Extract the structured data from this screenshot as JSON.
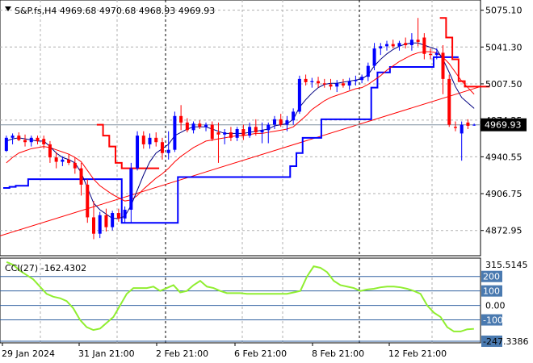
{
  "symbol_header": "S&P.fs,H4  4969.68 4970.68 4968.93 4969.93",
  "indicator_header": "CCI(27) -162.4302",
  "current_price_label": "4969.93",
  "colors": {
    "bull": "#0000ff",
    "bear": "#ff0000",
    "ma_fast": "#000080",
    "ma_slow": "#ff0000",
    "stop_line": "#0000ff",
    "trend_line": "#ff0000",
    "cci_line": "#90ee30",
    "cci_level": "#3060a0",
    "level_tag_bg": "#4a7ab0"
  },
  "chart_data": [
    {
      "type": "candlestick",
      "y_axis_ticks": [
        "5075.10",
        "5041.30",
        "5007.50",
        "4974.25",
        "4940.55",
        "4906.75",
        "4872.95"
      ],
      "ylim": [
        4853.5,
        5080.0
      ],
      "x_axis_labels": [
        "29 Jan 2024",
        "31 Jan 21:00",
        "2 Feb 21:00",
        "6 Feb 21:00",
        "8 Feb 21:00",
        "12 Feb 21:00"
      ],
      "current_price": 4969.93,
      "candles": [
        {
          "o": 4946,
          "h": 4960,
          "l": 4945,
          "c": 4958
        },
        {
          "o": 4958,
          "h": 4962,
          "l": 4952,
          "c": 4960
        },
        {
          "o": 4960,
          "h": 4963,
          "l": 4955,
          "c": 4956
        },
        {
          "o": 4956,
          "h": 4961,
          "l": 4950,
          "c": 4954
        },
        {
          "o": 4954,
          "h": 4960,
          "l": 4950,
          "c": 4958
        },
        {
          "o": 4958,
          "h": 4960,
          "l": 4952,
          "c": 4955
        },
        {
          "o": 4957,
          "h": 4960,
          "l": 4948,
          "c": 4952
        },
        {
          "o": 4952,
          "h": 4955,
          "l": 4935,
          "c": 4940
        },
        {
          "o": 4940,
          "h": 4945,
          "l": 4930,
          "c": 4936
        },
        {
          "o": 4936,
          "h": 4941,
          "l": 4932,
          "c": 4938
        },
        {
          "o": 4938,
          "h": 4943,
          "l": 4933,
          "c": 4935
        },
        {
          "o": 4935,
          "h": 4940,
          "l": 4925,
          "c": 4930
        },
        {
          "o": 4930,
          "h": 4935,
          "l": 4905,
          "c": 4915
        },
        {
          "o": 4915,
          "h": 4920,
          "l": 4880,
          "c": 4885
        },
        {
          "o": 4885,
          "h": 4900,
          "l": 4865,
          "c": 4870
        },
        {
          "o": 4870,
          "h": 4890,
          "l": 4866,
          "c": 4887
        },
        {
          "o": 4887,
          "h": 4893,
          "l": 4872,
          "c": 4876
        },
        {
          "o": 4876,
          "h": 4891,
          "l": 4873,
          "c": 4889
        },
        {
          "o": 4889,
          "h": 4893,
          "l": 4881,
          "c": 4884
        },
        {
          "o": 4884,
          "h": 4895,
          "l": 4880,
          "c": 4892
        },
        {
          "o": 4892,
          "h": 4935,
          "l": 4880,
          "c": 4930
        },
        {
          "o": 4930,
          "h": 4964,
          "l": 4928,
          "c": 4960
        },
        {
          "o": 4960,
          "h": 4964,
          "l": 4948,
          "c": 4952
        },
        {
          "o": 4952,
          "h": 4962,
          "l": 4948,
          "c": 4958
        },
        {
          "o": 4958,
          "h": 4963,
          "l": 4950,
          "c": 4954
        },
        {
          "o": 4954,
          "h": 4958,
          "l": 4938,
          "c": 4944
        },
        {
          "o": 4944,
          "h": 4964,
          "l": 4938,
          "c": 4947
        },
        {
          "o": 4947,
          "h": 4982,
          "l": 4945,
          "c": 4978
        },
        {
          "o": 4978,
          "h": 4988,
          "l": 4965,
          "c": 4972
        },
        {
          "o": 4972,
          "h": 4976,
          "l": 4963,
          "c": 4965
        },
        {
          "o": 4965,
          "h": 4973,
          "l": 4962,
          "c": 4971
        },
        {
          "o": 4971,
          "h": 4974,
          "l": 4966,
          "c": 4968
        },
        {
          "o": 4968,
          "h": 4972,
          "l": 4964,
          "c": 4970
        },
        {
          "o": 4970,
          "h": 4973,
          "l": 4955,
          "c": 4957
        },
        {
          "o": 4963,
          "h": 4972,
          "l": 4935,
          "c": 4961
        },
        {
          "o": 4961,
          "h": 4966,
          "l": 4952,
          "c": 4963
        },
        {
          "o": 4963,
          "h": 4968,
          "l": 4955,
          "c": 4958
        },
        {
          "o": 4958,
          "h": 4968,
          "l": 4955,
          "c": 4966
        },
        {
          "o": 4966,
          "h": 4970,
          "l": 4956,
          "c": 4960
        },
        {
          "o": 4960,
          "h": 4972,
          "l": 4958,
          "c": 4968
        },
        {
          "o": 4968,
          "h": 4975,
          "l": 4960,
          "c": 4963
        },
        {
          "o": 4963,
          "h": 4972,
          "l": 4953,
          "c": 4965
        },
        {
          "o": 4965,
          "h": 4972,
          "l": 4953,
          "c": 4970
        },
        {
          "o": 4970,
          "h": 4978,
          "l": 4966,
          "c": 4975
        },
        {
          "o": 4975,
          "h": 4980,
          "l": 4968,
          "c": 4970
        },
        {
          "o": 4970,
          "h": 4978,
          "l": 4964,
          "c": 4974
        },
        {
          "o": 4974,
          "h": 4985,
          "l": 4970,
          "c": 4982
        },
        {
          "o": 4982,
          "h": 5015,
          "l": 4980,
          "c": 5012
        },
        {
          "o": 5012,
          "h": 5016,
          "l": 5006,
          "c": 5009
        },
        {
          "o": 5009,
          "h": 5013,
          "l": 5004,
          "c": 5010
        },
        {
          "o": 5010,
          "h": 5014,
          "l": 5004,
          "c": 5008
        },
        {
          "o": 5008,
          "h": 5012,
          "l": 5004,
          "c": 5007
        },
        {
          "o": 5007,
          "h": 5012,
          "l": 5002,
          "c": 5005
        },
        {
          "o": 5005,
          "h": 5011,
          "l": 5000,
          "c": 5008
        },
        {
          "o": 5008,
          "h": 5012,
          "l": 5004,
          "c": 5006
        },
        {
          "o": 5006,
          "h": 5013,
          "l": 5002,
          "c": 5010
        },
        {
          "o": 5010,
          "h": 5015,
          "l": 5006,
          "c": 5011
        },
        {
          "o": 5011,
          "h": 5016,
          "l": 5008,
          "c": 5014
        },
        {
          "o": 5014,
          "h": 5027,
          "l": 5010,
          "c": 5024
        },
        {
          "o": 5024,
          "h": 5045,
          "l": 5020,
          "c": 5040
        },
        {
          "o": 5040,
          "h": 5045,
          "l": 5034,
          "c": 5042
        },
        {
          "o": 5042,
          "h": 5047,
          "l": 5038,
          "c": 5044
        },
        {
          "o": 5044,
          "h": 5048,
          "l": 5040,
          "c": 5042
        },
        {
          "o": 5042,
          "h": 5047,
          "l": 5038,
          "c": 5045
        },
        {
          "o": 5045,
          "h": 5050,
          "l": 5040,
          "c": 5043
        },
        {
          "o": 5043,
          "h": 5054,
          "l": 5038,
          "c": 5048
        },
        {
          "o": 5048,
          "h": 5068,
          "l": 5042,
          "c": 5046
        },
        {
          "o": 5050,
          "h": 5054,
          "l": 5030,
          "c": 5035
        },
        {
          "o": 5035,
          "h": 5040,
          "l": 5030,
          "c": 5034
        },
        {
          "o": 5034,
          "h": 5040,
          "l": 5030,
          "c": 5036
        },
        {
          "o": 5036,
          "h": 5043,
          "l": 4998,
          "c": 5012
        },
        {
          "o": 5012,
          "h": 5016,
          "l": 4968,
          "c": 4970
        },
        {
          "o": 4968,
          "h": 4973,
          "l": 4964,
          "c": 4967
        },
        {
          "o": 4962,
          "h": 4973,
          "l": 4937,
          "c": 4970
        },
        {
          "o": 4972,
          "h": 4975,
          "l": 4966,
          "c": 4969
        },
        {
          "o": 4970,
          "h": 4971,
          "l": 4969,
          "c": 4970
        }
      ],
      "ma_fast": [
        4955,
        4957,
        4958,
        4957,
        4956,
        4955,
        4955,
        4950,
        4944,
        4940,
        4938,
        4935,
        4926,
        4912,
        4898,
        4892,
        4888,
        4884,
        4884,
        4886,
        4896,
        4910,
        4924,
        4936,
        4944,
        4948,
        4952,
        4960,
        4963,
        4966,
        4968,
        4968,
        4968,
        4966,
        4964,
        4962,
        4962,
        4962,
        4962,
        4963,
        4964,
        4965,
        4966,
        4969,
        4970,
        4971,
        4975,
        4986,
        4993,
        4999,
        5004,
        5007,
        5008,
        5008,
        5009,
        5010,
        5011,
        5012,
        5016,
        5024,
        5030,
        5035,
        5039,
        5042,
        5044,
        5045,
        5045,
        5043,
        5041,
        5039,
        5030,
        5018,
        5005,
        4995,
        4990,
        4985
      ],
      "ma_slow": [
        4935,
        4940,
        4944,
        4946,
        4948,
        4949,
        4950,
        4949,
        4947,
        4945,
        4943,
        4940,
        4936,
        4928,
        4920,
        4914,
        4910,
        4906,
        4903,
        4900,
        4901,
        4905,
        4911,
        4916,
        4921,
        4925,
        4930,
        4936,
        4941,
        4945,
        4949,
        4952,
        4955,
        4956,
        4957,
        4958,
        4959,
        4960,
        4960,
        4961,
        4962,
        4962,
        4963,
        4964,
        4965,
        4966,
        4968,
        4973,
        4978,
        4984,
        4988,
        4992,
        4995,
        4997,
        4999,
        5001,
        5003,
        5004,
        5007,
        5011,
        5015,
        5020,
        5024,
        5028,
        5031,
        5034,
        5036,
        5037,
        5037,
        5036,
        5032,
        5026,
        5018,
        5010,
        5004,
        4998
      ],
      "stop_levels": [
        4912,
        4913,
        4914,
        4914,
        4920,
        4920,
        4920,
        4920,
        4920,
        4920,
        4920,
        4920,
        4920,
        4920,
        4920,
        4920,
        4920,
        4920,
        4920,
        4880,
        4880,
        4880,
        4880,
        4880,
        4880,
        4880,
        4880,
        4880,
        4922,
        4922,
        4922,
        4922,
        4922,
        4922,
        4922,
        4922,
        4922,
        4922,
        4922,
        4922,
        4922,
        4922,
        4922,
        4922,
        4922,
        4922,
        4932,
        4944,
        4958,
        4958,
        4958,
        4975,
        4975,
        4975,
        4975,
        4975,
        4975,
        4975,
        4975,
        5004,
        5018,
        5018,
        5023,
        5023,
        5023,
        5023,
        5023,
        5023,
        5023,
        5032,
        5032,
        5032,
        5032
      ],
      "stop_levels_red": [
        {
          "from": 15,
          "values": [
            4970,
            4960,
            4950,
            4935,
            4930,
            4930,
            4930,
            4930,
            4930,
            4930
          ]
        },
        {
          "from": 70,
          "values": [
            5068,
            5050,
            5030,
            5010,
            5005,
            5005,
            5005,
            5005
          ]
        }
      ],
      "trend_line": [
        4868,
        5005
      ]
    },
    {
      "type": "line",
      "name": "CCI(27)",
      "y_axis_ticks": [
        "315.5145",
        "200",
        "100",
        "0.00",
        "-100",
        "-247.3386"
      ],
      "ylim": [
        -247.3386,
        315.5145
      ],
      "levels": [
        200,
        100,
        0,
        -100,
        -247.3386
      ],
      "values": [
        300,
        280,
        240,
        210,
        180,
        130,
        80,
        60,
        50,
        30,
        -20,
        -100,
        -150,
        -170,
        -160,
        -120,
        -80,
        0,
        80,
        120,
        120,
        120,
        130,
        100,
        120,
        140,
        90,
        100,
        140,
        170,
        130,
        120,
        100,
        85,
        85,
        85,
        80,
        80,
        80,
        80,
        80,
        80,
        80,
        90,
        100,
        200,
        270,
        260,
        230,
        170,
        140,
        130,
        120,
        100,
        110,
        115,
        125,
        130,
        130,
        125,
        115,
        100,
        80,
        0,
        -50,
        -80,
        -150,
        -180,
        -180,
        -165,
        -162
      ]
    }
  ]
}
